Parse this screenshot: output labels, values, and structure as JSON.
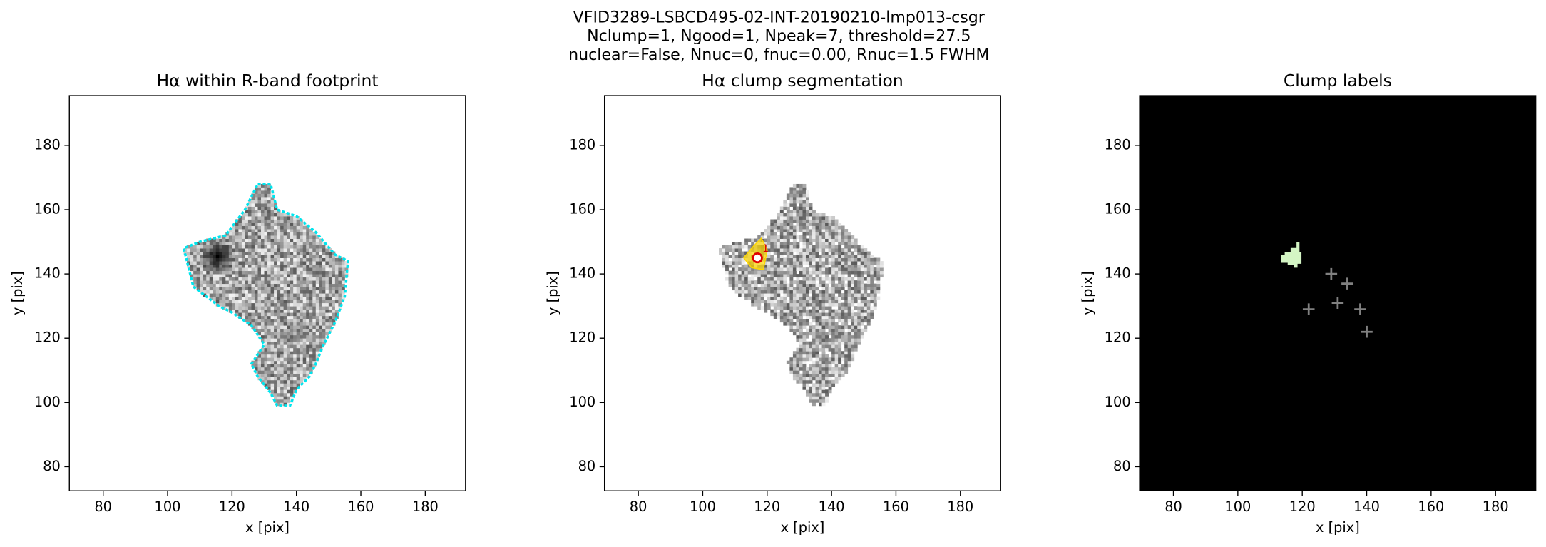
{
  "suptitle": [
    "VFID3289-LSBCD495-02-INT-20190210-lmp013-csgr",
    "Nclump=1, Ngood=1, Npeak=7, threshold=27.5",
    "nuclear=False, Nnuc=0, fnuc=0.00, Rnuc=1.5 FWHM"
  ],
  "chart_data": [
    {
      "type": "image",
      "title": "Hα within R-band footprint",
      "x_label": "x [pix]",
      "y_label": "y [pix]",
      "xlim": [
        69.5,
        192.5
      ],
      "ylim": [
        72.5,
        195.5
      ],
      "xticks": [
        80,
        100,
        120,
        140,
        160,
        180
      ],
      "yticks": [
        80,
        100,
        120,
        140,
        160,
        180
      ],
      "background": "#ffffff",
      "contour_color": "#00e5ee"
    },
    {
      "type": "image",
      "title": "Hα clump segmentation",
      "x_label": "x [pix]",
      "y_label": "y [pix]",
      "xlim": [
        69.5,
        192.5
      ],
      "ylim": [
        72.5,
        195.5
      ],
      "xticks": [
        80,
        100,
        120,
        140,
        160,
        180
      ],
      "yticks": [
        80,
        100,
        120,
        140,
        160,
        180
      ],
      "background": "#ffffff",
      "clump_x": [
        117
      ],
      "clump_y": [
        145
      ],
      "clump_labels": [
        "1"
      ],
      "clump_color": "#ffd700",
      "marker_color": "#e00000"
    },
    {
      "type": "labels",
      "title": "Clump labels",
      "x_label": "x [pix]",
      "y_label": "y [pix]",
      "xlim": [
        69.5,
        192.5
      ],
      "ylim": [
        72.5,
        195.5
      ],
      "xticks": [
        80,
        100,
        120,
        140,
        160,
        180
      ],
      "yticks": [
        80,
        100,
        120,
        140,
        160,
        180
      ],
      "background": "#000000",
      "clump_color": "#d4f5c4",
      "peaks": {
        "x": [
          129,
          134,
          131,
          138,
          122,
          140
        ],
        "y": [
          140,
          137,
          131,
          129,
          129,
          122
        ],
        "color": "#808080"
      }
    }
  ]
}
